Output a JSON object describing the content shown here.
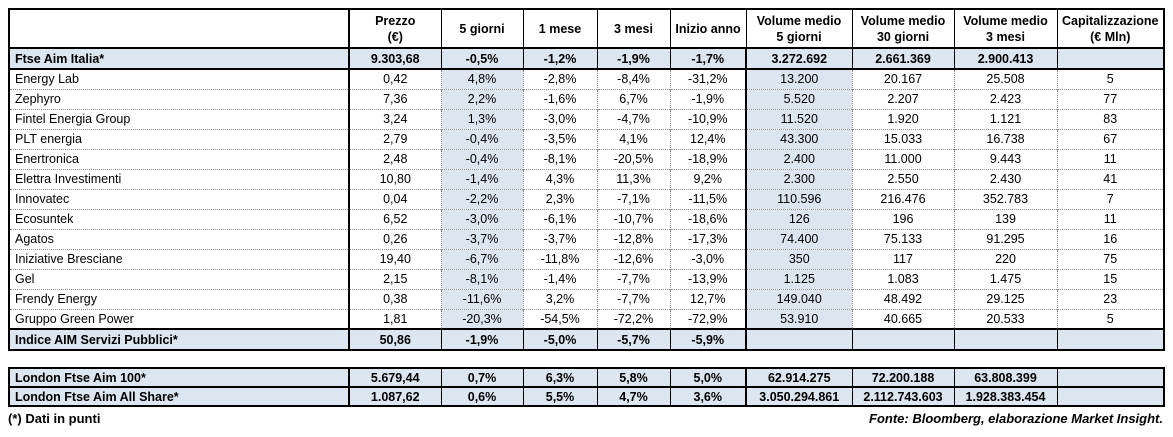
{
  "chart_data": {
    "type": "table",
    "columns": [
      {
        "line1": "",
        "line2": ""
      },
      {
        "line1": "Prezzo",
        "line2": "(€)"
      },
      {
        "line1": "5 giorni",
        "line2": ""
      },
      {
        "line1": "1 mese",
        "line2": ""
      },
      {
        "line1": "3 mesi",
        "line2": ""
      },
      {
        "line1": "Inizio anno",
        "line2": ""
      },
      {
        "line1": "Volume medio",
        "line2": "5 giorni"
      },
      {
        "line1": "Volume medio",
        "line2": "30 giorni"
      },
      {
        "line1": "Volume medio",
        "line2": "3 mesi"
      },
      {
        "line1": "Capitalizzazione",
        "line2": "(€ Mln)"
      }
    ],
    "shaded_value_columns": [
      1,
      5
    ],
    "main_rows": [
      {
        "name": "Ftse Aim Italia*",
        "bold": true,
        "cells": [
          "9.303,68",
          "-0,5%",
          "-1,2%",
          "-1,9%",
          "-1,7%",
          "3.272.692",
          "2.661.369",
          "2.900.413",
          ""
        ]
      },
      {
        "name": "Energy Lab",
        "cells": [
          "0,42",
          "4,8%",
          "-2,8%",
          "-8,4%",
          "-31,2%",
          "13.200",
          "20.167",
          "25.508",
          "5"
        ]
      },
      {
        "name": "Zephyro",
        "cells": [
          "7,36",
          "2,2%",
          "-1,6%",
          "6,7%",
          "-1,9%",
          "5.520",
          "2.207",
          "2.423",
          "77"
        ]
      },
      {
        "name": "Fintel Energia Group",
        "cells": [
          "3,24",
          "1,3%",
          "-3,0%",
          "-4,7%",
          "-10,9%",
          "11.520",
          "1.920",
          "1.121",
          "83"
        ]
      },
      {
        "name": "PLT energia",
        "cells": [
          "2,79",
          "-0,4%",
          "-3,5%",
          "4,1%",
          "12,4%",
          "43.300",
          "15.033",
          "16.738",
          "67"
        ]
      },
      {
        "name": "Enertronica",
        "cells": [
          "2,48",
          "-0,4%",
          "-8,1%",
          "-20,5%",
          "-18,9%",
          "2.400",
          "11.000",
          "9.443",
          "11"
        ]
      },
      {
        "name": "Elettra Investimenti",
        "cells": [
          "10,80",
          "-1,4%",
          "4,3%",
          "11,3%",
          "9,2%",
          "2.300",
          "2.550",
          "2.430",
          "41"
        ]
      },
      {
        "name": "Innovatec",
        "cells": [
          "0,04",
          "-2,2%",
          "2,3%",
          "-7,1%",
          "-11,5%",
          "110.596",
          "216.476",
          "352.783",
          "7"
        ]
      },
      {
        "name": "Ecosuntek",
        "cells": [
          "6,52",
          "-3,0%",
          "-6,1%",
          "-10,7%",
          "-18,6%",
          "126",
          "196",
          "139",
          "11"
        ]
      },
      {
        "name": "Agatos",
        "cells": [
          "0,26",
          "-3,7%",
          "-3,7%",
          "-12,8%",
          "-17,3%",
          "74.400",
          "75.133",
          "91.295",
          "16"
        ]
      },
      {
        "name": "Iniziative Bresciane",
        "cells": [
          "19,40",
          "-6,7%",
          "-11,8%",
          "-12,6%",
          "-3,0%",
          "350",
          "117",
          "220",
          "75"
        ]
      },
      {
        "name": "Gel",
        "cells": [
          "2,15",
          "-8,1%",
          "-1,4%",
          "-7,7%",
          "-13,9%",
          "1.125",
          "1.083",
          "1.475",
          "15"
        ]
      },
      {
        "name": "Frendy Energy",
        "cells": [
          "0,38",
          "-11,6%",
          "3,2%",
          "-7,7%",
          "12,7%",
          "149.040",
          "48.492",
          "29.125",
          "23"
        ]
      },
      {
        "name": "Gruppo Green Power",
        "cells": [
          "1,81",
          "-20,3%",
          "-54,5%",
          "-72,2%",
          "-72,9%",
          "53.910",
          "40.665",
          "20.533",
          "5"
        ]
      },
      {
        "name": "Indice AIM Servizi Pubblici*",
        "bold": true,
        "cells": [
          "50,86",
          "-1,9%",
          "-5,0%",
          "-5,7%",
          "-5,9%",
          "",
          "",
          "",
          ""
        ]
      }
    ],
    "london_rows": [
      {
        "name": "London Ftse Aim 100*",
        "bold": true,
        "cells": [
          "5.679,44",
          "0,7%",
          "6,3%",
          "5,8%",
          "5,0%",
          "62.914.275",
          "72.200.188",
          "63.808.399",
          ""
        ]
      },
      {
        "name": "London Ftse Aim All Share*",
        "bold": true,
        "cells": [
          "1.087,62",
          "0,6%",
          "5,5%",
          "4,7%",
          "3,6%",
          "3.050.294.861",
          "2.112.743.603",
          "1.928.383.454",
          ""
        ]
      }
    ]
  },
  "footnote": "(*) Dati in punti",
  "source": "Fonte: Bloomberg, elaborazione Market Insight.",
  "colors": {
    "row_shade": "#dce6f1",
    "column_shade": "#dce6f1",
    "border": "#000000",
    "dotted_grid": "#8f8f8f"
  }
}
